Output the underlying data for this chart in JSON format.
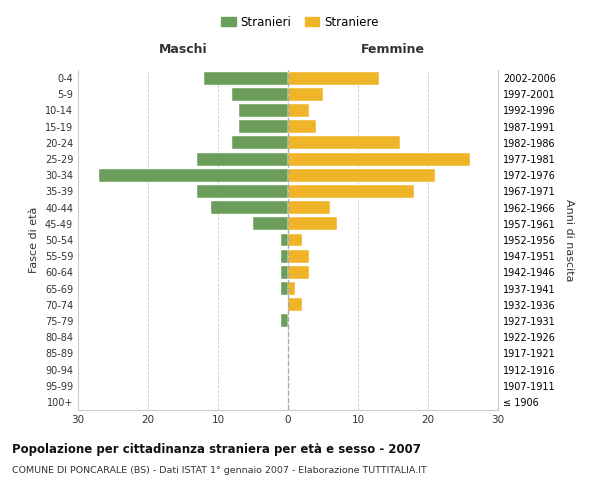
{
  "age_groups": [
    "100+",
    "95-99",
    "90-94",
    "85-89",
    "80-84",
    "75-79",
    "70-74",
    "65-69",
    "60-64",
    "55-59",
    "50-54",
    "45-49",
    "40-44",
    "35-39",
    "30-34",
    "25-29",
    "20-24",
    "15-19",
    "10-14",
    "5-9",
    "0-4"
  ],
  "birth_years": [
    "≤ 1906",
    "1907-1911",
    "1912-1916",
    "1917-1921",
    "1922-1926",
    "1927-1931",
    "1932-1936",
    "1937-1941",
    "1942-1946",
    "1947-1951",
    "1952-1956",
    "1957-1961",
    "1962-1966",
    "1967-1971",
    "1972-1976",
    "1977-1981",
    "1982-1986",
    "1987-1991",
    "1992-1996",
    "1997-2001",
    "2002-2006"
  ],
  "males": [
    0,
    0,
    0,
    0,
    0,
    1,
    0,
    1,
    1,
    1,
    1,
    5,
    11,
    13,
    27,
    13,
    8,
    7,
    7,
    8,
    12
  ],
  "females": [
    0,
    0,
    0,
    0,
    0,
    0,
    2,
    1,
    3,
    3,
    2,
    7,
    6,
    18,
    21,
    26,
    16,
    4,
    3,
    5,
    13
  ],
  "male_color": "#6a9e5a",
  "female_color": "#f0b429",
  "background_color": "#ffffff",
  "grid_color": "#cccccc",
  "title": "Popolazione per cittadinanza straniera per età e sesso - 2007",
  "subtitle": "COMUNE DI PONCARALE (BS) - Dati ISTAT 1° gennaio 2007 - Elaborazione TUTTITALIA.IT",
  "xlabel_left": "Maschi",
  "xlabel_right": "Femmine",
  "ylabel_left": "Fasce di età",
  "ylabel_right": "Anni di nascita",
  "legend_male": "Stranieri",
  "legend_female": "Straniere",
  "xlim": 30,
  "dashed_line_color": "#aaaaaa"
}
